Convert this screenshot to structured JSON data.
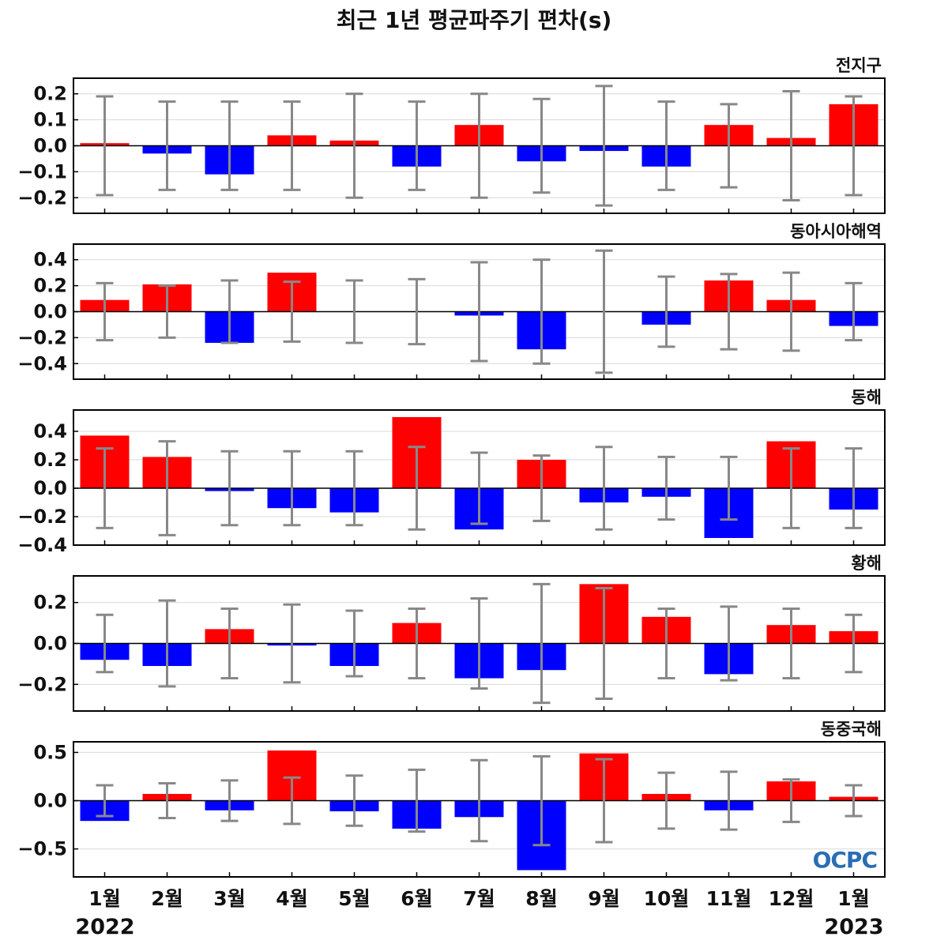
{
  "title": "최근 1년 평균파주기 편차(s)",
  "x_labels": [
    "1월",
    "2월",
    "3월",
    "4월",
    "5월",
    "6월",
    "7월",
    "8월",
    "9월",
    "10월",
    "11월",
    "12월",
    "1월"
  ],
  "year_start": "2022",
  "year_end": "2023",
  "logo": "OCPC",
  "colors": {
    "positive": "#ff0000",
    "negative": "#0000ff",
    "error_bar": "#888888",
    "zero_line": "#000000",
    "grid": "#d9d9d9"
  },
  "chart_data": [
    {
      "type": "bar",
      "title": "전지구",
      "categories": [
        "1월",
        "2월",
        "3월",
        "4월",
        "5월",
        "6월",
        "7월",
        "8월",
        "9월",
        "10월",
        "11월",
        "12월",
        "1월"
      ],
      "values": [
        0.01,
        -0.03,
        -0.11,
        0.04,
        0.02,
        -0.08,
        0.08,
        -0.06,
        -0.02,
        -0.08,
        0.08,
        0.03,
        0.16
      ],
      "error": [
        0.19,
        0.17,
        0.17,
        0.17,
        0.2,
        0.17,
        0.2,
        0.18,
        0.23,
        0.17,
        0.16,
        0.21,
        0.19
      ],
      "ylim": [
        -0.26,
        0.26
      ],
      "yticks": [
        0.2,
        0.1,
        0.0,
        -0.1,
        -0.2
      ],
      "ytick_labels": [
        "0.2",
        "0.1",
        "0.0",
        "−0.1",
        "−0.2"
      ]
    },
    {
      "type": "bar",
      "title": "동아시아해역",
      "categories": [
        "1월",
        "2월",
        "3월",
        "4월",
        "5월",
        "6월",
        "7월",
        "8월",
        "9월",
        "10월",
        "11월",
        "12월",
        "1월"
      ],
      "values": [
        0.09,
        0.21,
        -0.24,
        0.3,
        0.0,
        0.0,
        -0.03,
        -0.29,
        0.0,
        -0.1,
        0.24,
        0.09,
        -0.11
      ],
      "error": [
        0.22,
        0.2,
        0.24,
        0.23,
        0.24,
        0.25,
        0.38,
        0.4,
        0.47,
        0.27,
        0.29,
        0.3,
        0.22
      ],
      "ylim": [
        -0.52,
        0.52
      ],
      "yticks": [
        0.4,
        0.2,
        0.0,
        -0.2,
        -0.4
      ],
      "ytick_labels": [
        "0.4",
        "0.2",
        "0.0",
        "−0.2",
        "−0.4"
      ]
    },
    {
      "type": "bar",
      "title": "동해",
      "categories": [
        "1월",
        "2월",
        "3월",
        "4월",
        "5월",
        "6월",
        "7월",
        "8월",
        "9월",
        "10월",
        "11월",
        "12월",
        "1월"
      ],
      "values": [
        0.37,
        0.22,
        -0.02,
        -0.14,
        -0.17,
        0.5,
        -0.29,
        0.2,
        -0.1,
        -0.06,
        -0.35,
        0.33,
        -0.15
      ],
      "error": [
        0.28,
        0.33,
        0.26,
        0.26,
        0.26,
        0.29,
        0.25,
        0.23,
        0.29,
        0.22,
        0.22,
        0.28,
        0.28
      ],
      "ylim": [
        -0.4,
        0.55
      ],
      "yticks": [
        0.4,
        0.2,
        0.0,
        -0.2,
        -0.4
      ],
      "ytick_labels": [
        "0.4",
        "0.2",
        "0.0",
        "−0.2",
        "−0.4"
      ]
    },
    {
      "type": "bar",
      "title": "황해",
      "categories": [
        "1월",
        "2월",
        "3월",
        "4월",
        "5월",
        "6월",
        "7월",
        "8월",
        "9월",
        "10월",
        "11월",
        "12월",
        "1월"
      ],
      "values": [
        -0.08,
        -0.11,
        0.07,
        -0.01,
        -0.11,
        0.1,
        -0.17,
        -0.13,
        0.29,
        0.13,
        -0.15,
        0.09,
        0.06
      ],
      "error": [
        0.14,
        0.21,
        0.17,
        0.19,
        0.16,
        0.17,
        0.22,
        0.29,
        0.27,
        0.17,
        0.18,
        0.17,
        0.14
      ],
      "ylim": [
        -0.33,
        0.33
      ],
      "yticks": [
        0.2,
        0.0,
        -0.2
      ],
      "ytick_labels": [
        "0.2",
        "0.0",
        "−0.2"
      ]
    },
    {
      "type": "bar",
      "title": "동중국해",
      "categories": [
        "1월",
        "2월",
        "3월",
        "4월",
        "5월",
        "6월",
        "7월",
        "8월",
        "9월",
        "10월",
        "11월",
        "12월",
        "1월"
      ],
      "values": [
        -0.21,
        0.07,
        -0.1,
        0.52,
        -0.11,
        -0.29,
        -0.17,
        -0.72,
        0.49,
        0.07,
        -0.1,
        0.2,
        0.04
      ],
      "error": [
        0.16,
        0.18,
        0.21,
        0.24,
        0.26,
        0.32,
        0.42,
        0.46,
        0.43,
        0.29,
        0.3,
        0.22,
        0.16
      ],
      "ylim": [
        -0.79,
        0.61
      ],
      "yticks": [
        0.5,
        0.0,
        -0.5
      ],
      "ytick_labels": [
        "0.5",
        "0.0",
        "−0.5"
      ]
    }
  ]
}
